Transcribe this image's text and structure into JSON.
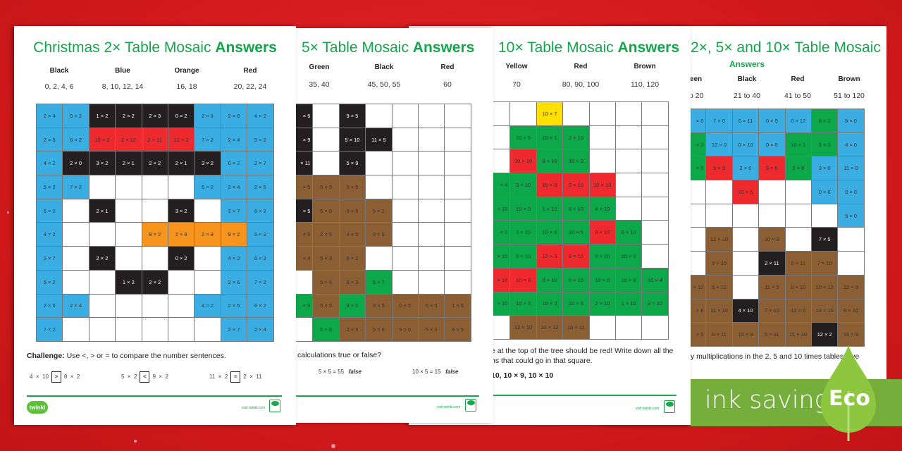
{
  "palette": {
    "b": "#3aaee3",
    "k": "#231f20",
    "r": "#ee2a2e",
    "o": "#f7941d",
    "g": "#0da84a",
    "n": "#8b5e34",
    "y": "#ffe000",
    "w": "#ffffff"
  },
  "sheets": [
    {
      "title_plain": "Christmas 2× Table Mosaic ",
      "title_bold": "Answers",
      "headers": [
        {
          "label": "Black",
          "values": "0, 2, 4, 6"
        },
        {
          "label": "Blue",
          "values": "8, 10, 12, 14"
        },
        {
          "label": "Orange",
          "values": "16, 18"
        },
        {
          "label": "Red",
          "values": "20, 22, 24"
        }
      ],
      "grid": [
        [
          "b|2 × 4",
          "b|5 × 2",
          "k|1 × 2",
          "k|2 × 2",
          "k|2 × 3",
          "k|0 × 2",
          "b|2 × 5",
          "b|2 × 6",
          "b|4 × 2"
        ],
        [
          "b|2 × 5",
          "b|6 × 2",
          "r|10 × 2",
          "r|2 × 12",
          "r|2 × 11",
          "r|12 × 2",
          "b|7 × 2",
          "b|2 × 4",
          "b|5 × 2"
        ],
        [
          "b|4 × 2",
          "k|2 × 0",
          "k|3 × 2",
          "k|2 × 1",
          "k|2 × 2",
          "k|2 × 1",
          "k|3 × 2",
          "b|6 × 2",
          "b|2 × 7"
        ],
        [
          "b|5 × 2",
          "b|7 × 2",
          "w|",
          "w|",
          "w|",
          "w|",
          "b|5 × 2",
          "b|2 × 4",
          "b|2 × 5"
        ],
        [
          "b|6 × 2",
          "w|",
          "k|2 × 1",
          "w|",
          "w|",
          "k|3 × 2",
          "w|",
          "b|2 × 7",
          "b|6 × 2"
        ],
        [
          "b|4 × 2",
          "w|",
          "w|",
          "w|",
          "o|8 × 2",
          "o|2 × 9",
          "o|2 × 8",
          "o|9 × 2",
          "b|5 × 2"
        ],
        [
          "b|2 × 7",
          "w|",
          "k|2 × 2",
          "w|",
          "w|",
          "k|0 × 2",
          "w|",
          "b|4 × 2",
          "b|6 × 2"
        ],
        [
          "b|5 × 2",
          "w|",
          "w|",
          "k|1 × 2",
          "k|2 × 2",
          "w|",
          "w|",
          "b|2 × 6",
          "b|7 × 2"
        ],
        [
          "b|2 × 6",
          "b|2 × 4",
          "w|",
          "w|",
          "w|",
          "w|",
          "b|4 × 2",
          "b|2 × 5",
          "b|6 × 2"
        ],
        [
          "b|7 × 2",
          "w|",
          "w|",
          "w|",
          "w|",
          "w|",
          "w|",
          "b|2 × 7",
          "b|2 × 4"
        ]
      ],
      "challenge_label": "Challenge:",
      "challenge_text": " Use <, > or = to compare the number sentences.",
      "comparisons": [
        {
          "left": "4  ×  10",
          "sign": ">",
          "right": "8  ×  2"
        },
        {
          "left": "5  ×  2",
          "sign": "<",
          "right": "9  ×  2"
        },
        {
          "left": "11  ×  2",
          "sign": "=",
          "right": "2  ×  11"
        }
      ],
      "logo": "twinkl",
      "visit": "visit twinkl.com"
    },
    {
      "title_plain": "5× Table Mosaic ",
      "title_bold": "Answers",
      "headers": [
        {
          "label": "Green",
          "values": "35, 40"
        },
        {
          "label": "Black",
          "values": "45, 50, 55"
        },
        {
          "label": "Red",
          "values": "60"
        }
      ],
      "grid": [
        [
          "k|× 5",
          "w|",
          "k|9 × 5",
          "w|",
          "w|",
          "w|",
          "w|"
        ],
        [
          "k|× 9",
          "w|",
          "k|5 × 10",
          "k|11 × 5",
          "w|",
          "w|",
          "w|"
        ],
        [
          "k|× 11",
          "w|",
          "k|5 × 9",
          "w|",
          "w|",
          "w|",
          "w|"
        ],
        [
          "n|× 5",
          "n|5 × 5",
          "n|3 × 5",
          "w|",
          "w|",
          "w|",
          "w|"
        ],
        [
          "k|× 5",
          "n|5 × 0",
          "n|6 × 5",
          "n|5 × 1",
          "w|",
          "w|",
          "w|"
        ],
        [
          "n|× 5",
          "n|2 × 5",
          "n|4 × 5",
          "n|0 × 5",
          "w|",
          "w|",
          "w|"
        ],
        [
          "n|× 4",
          "n|5 × 3",
          "n|5 × 2",
          "w|",
          "w|",
          "w|",
          "w|"
        ],
        [
          "w|",
          "n|5 × 6",
          "n|5 × 3",
          "g|5 × 7",
          "w|",
          "w|",
          "w|"
        ],
        [
          "g|× 5",
          "n|5 × 5",
          "g|8 × 5",
          "n|3 × 5",
          "n|0 × 5",
          "n|6 × 5",
          "n|1 × 5"
        ],
        [
          "w|",
          "g|5 × 8",
          "n|2 × 5",
          "n|5 × 5",
          "n|5 × 6",
          "n|5 × 2",
          "n|4 × 5"
        ]
      ],
      "question": "calculations true or false?",
      "answers": [
        {
          "sum": "5  ×  5  =  55",
          "verdict": "false"
        },
        {
          "sum": "10  ×  5  =  15",
          "verdict": "false"
        }
      ],
      "visit": "visit twinkl.com"
    },
    {
      "title_plain": "10× Table Mosaic ",
      "title_bold": "Answers",
      "headers": [
        {
          "label": "Yellow",
          "values": "70"
        },
        {
          "label": "Red",
          "values": "80, 90, 100"
        },
        {
          "label": "Brown",
          "values": "110, 120"
        }
      ],
      "grid": [
        [
          "w|",
          "w|",
          "y|10 × 7",
          "w|",
          "w|",
          "w|",
          "w|"
        ],
        [
          "w|",
          "g|10 × 5",
          "g|10 × 1",
          "g|2 × 10",
          "w|",
          "w|",
          "w|"
        ],
        [
          "w|",
          "r|10 × 10",
          "g|6 × 10",
          "g|10 × 3",
          "w|",
          "w|",
          "w|"
        ],
        [
          "g|× 4",
          "g|3 × 10",
          "r|10 × 8",
          "r|9 × 10",
          "r|10 × 10",
          "w|",
          "w|"
        ],
        [
          "g|× 10",
          "g|10 × 0",
          "g|1 × 10",
          "g|3 × 10",
          "g|4 × 10",
          "w|",
          "w|"
        ],
        [
          "g|× 2",
          "g|3 × 10",
          "g|10 × 6",
          "g|10 × 5",
          "r|9 × 10",
          "g|6 × 10",
          "w|"
        ],
        [
          "g|× 10",
          "g|5 × 10",
          "r|10 × 9",
          "r|8 × 10",
          "g|3 × 10",
          "g|10 × 2",
          "w|"
        ],
        [
          "r|× 10",
          "r|10 × 8",
          "g|0 × 10",
          "g|5 × 10",
          "g|10 × 0",
          "g|10 × 6",
          "g|10 × 4"
        ],
        [
          "g|× 10",
          "g|10 × 3",
          "g|10 × 3",
          "g|10 × 6",
          "g|2 × 10",
          "g|1 × 10",
          "g|3 × 10"
        ],
        [
          "w|",
          "n|12 × 10",
          "n|10 × 12",
          "n|10 × 11",
          "w|",
          "w|",
          "w|"
        ]
      ],
      "text_line1": "e at the top of the tree should be red! Write down all the",
      "text_line2": "ns that could go in that square.",
      "answer": "10, 10 × 9, 10 × 10",
      "visit": "visit twinkl.com"
    },
    {
      "title": "2×, 5× and 10× Table Mosaic",
      "subtitle": "Answers",
      "headers": [
        {
          "label": "reen",
          "values": "to 20"
        },
        {
          "label": "Black",
          "values": "21 to 40"
        },
        {
          "label": "Red",
          "values": "41 to 50"
        },
        {
          "label": "Brown",
          "values": "51 to 120"
        }
      ],
      "grid": [
        [
          "b|× 0",
          "b|7 × 0",
          "b|0 × 11",
          "b|0 × 9",
          "b|0 × 12",
          "g|8 × 2",
          "b|8 × 0"
        ],
        [
          "g|× 2",
          "b|12 × 0",
          "b|0 × 10",
          "b|0 × 5",
          "g|10 × 1",
          "g|5 × 3",
          "b|4 × 0"
        ],
        [
          "g|× 5",
          "r|5 × 9",
          "b|2 × 0",
          "r|9 × 5",
          "g|2 × 6",
          "b|3 × 0",
          "b|11 × 0"
        ],
        [
          "w|",
          "w|",
          "r|10 × 5",
          "w|",
          "w|",
          "b|0 × 8",
          "b|0 × 0"
        ],
        [
          "w|",
          "w|",
          "w|",
          "w|",
          "w|",
          "w|",
          "b|9 × 0"
        ],
        [
          "w|",
          "n|12 × 10",
          "w|",
          "n|10 × 8",
          "w|",
          "k|7 × 5",
          "w|"
        ],
        [
          "w|",
          "n|9 × 10",
          "w|",
          "k|2 × 11",
          "n|5 × 11",
          "n|7 × 10",
          "w|"
        ],
        [
          "n|× 10",
          "n|5 × 12",
          "w|",
          "n|11 × 5",
          "n|9 × 10",
          "n|10 × 10",
          "n|12 × 5"
        ],
        [
          "n|× 8",
          "n|11 × 10",
          "k|4 × 10",
          "n|7 × 10",
          "n|12 × 5",
          "n|12 × 10",
          "n|8 × 10"
        ],
        [
          "n|× 5",
          "n|5 × 11",
          "n|10 × 9",
          "n|5 × 11",
          "n|11 × 10",
          "k|12 × 2",
          "n|10 × 9"
        ]
      ],
      "text_line1": "y multiplications in the 2, 5 and 10 times tables give"
    }
  ],
  "eco_banner": {
    "text": "ink saving",
    "badge": "Eco",
    "color": "#76ae3c",
    "drop_color": "#8dc63f"
  }
}
